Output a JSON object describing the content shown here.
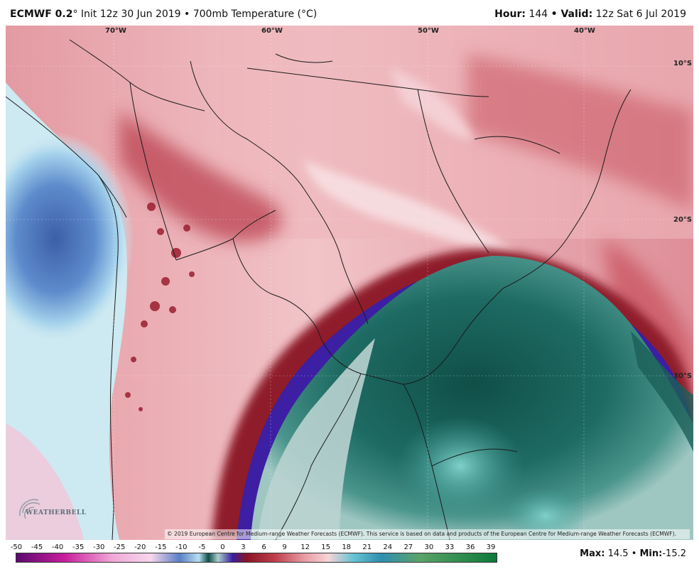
{
  "header": {
    "model": "ECMWF 0.2",
    "sep_symbol": "°",
    "init_text": "Init 12z 30 Jun 2019 • 700mb Temperature (°C)",
    "hour_label": "Hour:",
    "hour_value": "144",
    "valid_label": "• Valid:",
    "valid_value": "12z Sat 6 Jul 2019"
  },
  "map": {
    "longitude_labels": [
      "70°W",
      "60°W",
      "50°W",
      "40°W"
    ],
    "latitude_labels": [
      "10°S",
      "20°S",
      "30°S"
    ],
    "copyright": "© 2019 European Centre for Medium-range Weather Forecasts (ECMWF). This service is based on data and products of the European Centre for Medium-range Weather Forecasts (ECMWF).",
    "logo_text": "WEATHERBELL",
    "logo_icon": "weatherbell-swirl-logo"
  },
  "legend": {
    "ticks": [
      "-50",
      "-45",
      "-40",
      "-35",
      "-30",
      "-25",
      "-20",
      "-15",
      "-10",
      "-5",
      "0",
      "3",
      "6",
      "9",
      "12",
      "15",
      "18",
      "21",
      "24",
      "27",
      "30",
      "33",
      "36",
      "39"
    ],
    "colors": {
      "very_cold": "#5a0a6e",
      "magenta": "#c81d9c",
      "pink": "#f0a8d8",
      "light_pink": "#f6d6ec",
      "blue": "#5a7fc6",
      "light_blue": "#b6dff0",
      "teal_dark": "#0f4d47",
      "teal": "#3f9c94",
      "light_teal": "#a9cfcb",
      "indigo": "#3b1fa0",
      "dark_red": "#8a1426",
      "red": "#c0404d",
      "salmon": "#e89ca4",
      "light_salmon": "#f6d4d6",
      "green": "#0d7a3a"
    }
  },
  "stats": {
    "max_label": "Max:",
    "max_value": "14.5",
    "sep": "•",
    "min_label": "Min:",
    "min_value": "-15.2"
  }
}
